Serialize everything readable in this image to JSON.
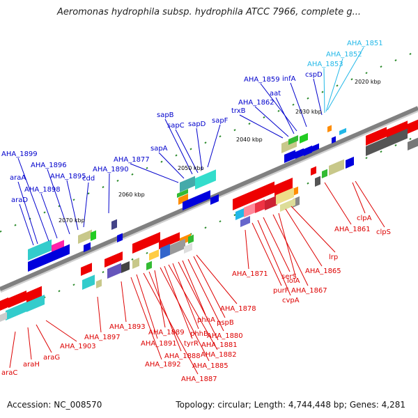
{
  "title": "Aeromonas hydrophila subsp. hydrophila ATCC 7966, complete g...",
  "footer": {
    "accession": "Accession: NC_008570",
    "topology": "Topology: circular; Length: 4,744,448 bp; Genes: 4,281"
  },
  "colors": {
    "top_labels": "#0000cc",
    "top_labels_cyan": "#22b8e8",
    "bottom_labels": "#dd0000",
    "backbone": "#808080",
    "tick_mark": "#2a8a2a"
  },
  "axis_ticks": [
    {
      "label": "2020 kbp"
    },
    {
      "label": "2030 kbp"
    },
    {
      "label": "2040 kbp"
    },
    {
      "label": "2050 kbp"
    },
    {
      "label": "2060 kbp"
    },
    {
      "label": "2070 kbp"
    }
  ],
  "top_genes": [
    {
      "label": "AHA_1851"
    },
    {
      "label": "AHA_1852"
    },
    {
      "label": "AHA_1853"
    },
    {
      "label": "cspD"
    },
    {
      "label": "infA"
    },
    {
      "label": "AHA_1859"
    },
    {
      "label": "aat"
    },
    {
      "label": "AHA_1862"
    },
    {
      "label": "trxB"
    },
    {
      "label": "sapF"
    },
    {
      "label": "sapD"
    },
    {
      "label": "sapC"
    },
    {
      "label": "sapB"
    },
    {
      "label": "sapA"
    },
    {
      "label": "AHA_1877"
    },
    {
      "label": "AHA_1890"
    },
    {
      "label": "cdd"
    },
    {
      "label": "AHA_1895"
    },
    {
      "label": "AHA_1896"
    },
    {
      "label": "AHA_1898"
    },
    {
      "label": "AHA_1899"
    },
    {
      "label": "araA"
    },
    {
      "label": "araD"
    }
  ],
  "bottom_genes": [
    {
      "label": "clpA"
    },
    {
      "label": "clpS"
    },
    {
      "label": "AHA_1861"
    },
    {
      "label": "lrp"
    },
    {
      "label": "AHA_1865"
    },
    {
      "label": "lolA"
    },
    {
      "label": "AHA_1867"
    },
    {
      "label": "serS"
    },
    {
      "label": "cvpA"
    },
    {
      "label": "purF"
    },
    {
      "label": "AHA_1871"
    },
    {
      "label": "AHA_1878"
    },
    {
      "label": "pspB"
    },
    {
      "label": "AHA_1880"
    },
    {
      "label": "phhA"
    },
    {
      "label": "AHA_1881"
    },
    {
      "label": "phhB"
    },
    {
      "label": "AHA_1882"
    },
    {
      "label": "tyrR"
    },
    {
      "label": "AHA_1885"
    },
    {
      "label": "AHA_1889"
    },
    {
      "label": "AHA_1888"
    },
    {
      "label": "AHA_1887"
    },
    {
      "label": "AHA_1891"
    },
    {
      "label": "AHA_1893"
    },
    {
      "label": "AHA_1892"
    },
    {
      "label": "AHA_1897"
    },
    {
      "label": "AHA_1903"
    },
    {
      "label": "araG"
    },
    {
      "label": "araH"
    },
    {
      "label": "araC"
    }
  ]
}
